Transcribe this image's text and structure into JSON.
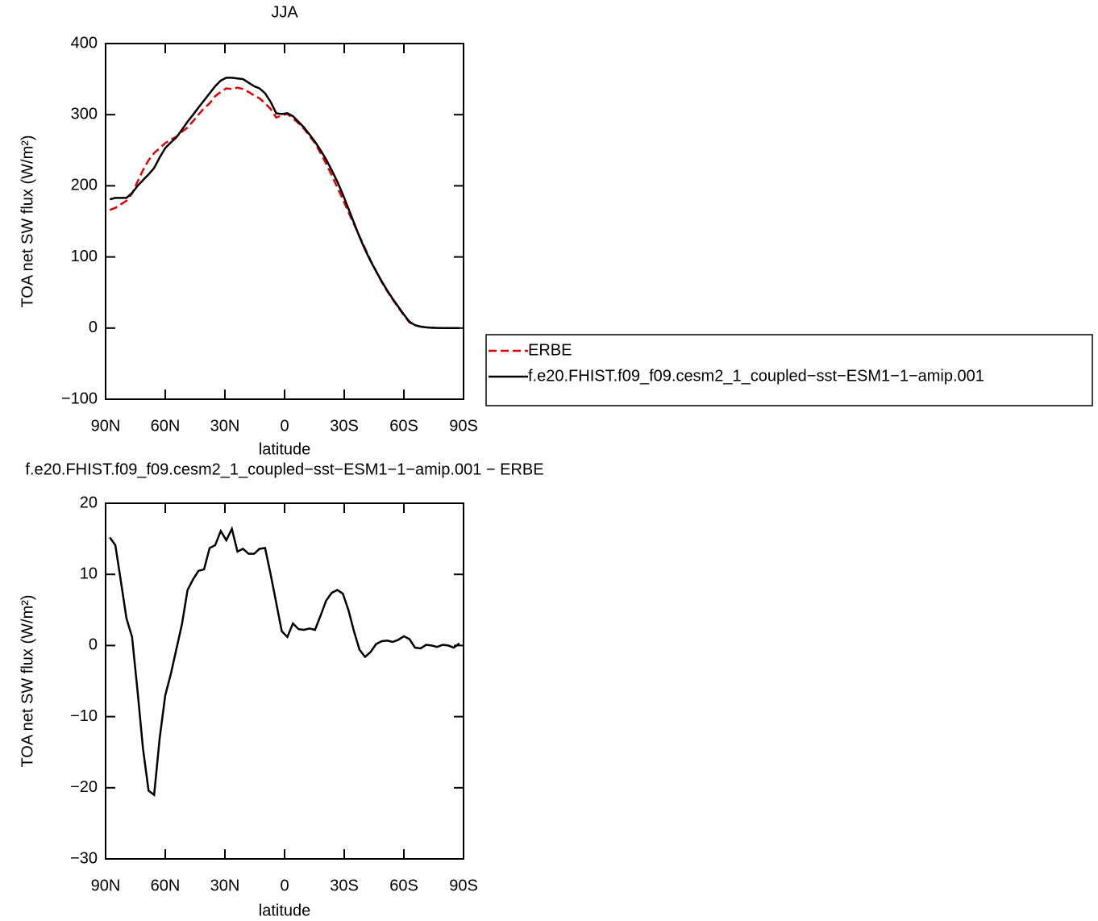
{
  "chart_data": [
    {
      "type": "line",
      "title": "JJA",
      "xlabel": "latitude",
      "ylabel": "TOA net SW flux (W/m²)",
      "xlim": [
        90,
        -90
      ],
      "ylim": [
        -100,
        400
      ],
      "xticks": [
        {
          "value": 90,
          "label": "90N"
        },
        {
          "value": 60,
          "label": "60N"
        },
        {
          "value": 30,
          "label": "30N"
        },
        0,
        {
          "value": -30,
          "label": "30S"
        },
        {
          "value": -60,
          "label": "60S"
        },
        {
          "value": -90,
          "label": "90S"
        }
      ],
      "yticks": [
        -100,
        0,
        100,
        200,
        300,
        400
      ],
      "x": [
        87.9,
        85.1,
        82.3,
        79.5,
        76.7,
        73.9,
        71.2,
        68.4,
        65.6,
        62.8,
        60.0,
        57.2,
        54.4,
        51.6,
        48.8,
        46.0,
        43.3,
        40.5,
        37.7,
        34.9,
        32.1,
        29.3,
        26.5,
        23.7,
        20.9,
        18.1,
        15.3,
        12.6,
        9.8,
        7.0,
        4.2,
        1.4,
        -1.4,
        -4.2,
        -7.0,
        -9.8,
        -12.6,
        -15.3,
        -18.1,
        -20.9,
        -23.7,
        -26.5,
        -29.3,
        -32.1,
        -34.9,
        -37.7,
        -40.5,
        -43.3,
        -46.0,
        -48.8,
        -51.6,
        -54.4,
        -57.2,
        -60.0,
        -62.8,
        -65.6,
        -68.4,
        -71.2,
        -73.9,
        -76.7,
        -79.5,
        -82.3,
        -85.1,
        -87.9
      ],
      "series": [
        {
          "name": "ERBE",
          "color": "#e00000",
          "dashed": true,
          "values": [
            166,
            169,
            174,
            179,
            189,
            206,
            222,
            236,
            246,
            253,
            260,
            265,
            269,
            276,
            282,
            291,
            300,
            309,
            316,
            326,
            332,
            337,
            336,
            338,
            336,
            332,
            327,
            323,
            316,
            308,
            296,
            299,
            301,
            295,
            288,
            280,
            270,
            260,
            246,
            231,
            215,
            198,
            181,
            163,
            146,
            129,
            112,
            95,
            80,
            65,
            52,
            40,
            29,
            18,
            8,
            4,
            2,
            1,
            0.5,
            0.4,
            0,
            0,
            0,
            0
          ]
        },
        {
          "name": "f.e20.FHIST.f09_f09.cesm2_1_coupled−sst−ESM1−1−amip.001",
          "color": "#000000",
          "dashed": false,
          "values": [
            181,
            183,
            183,
            183,
            190,
            200,
            208,
            216,
            225,
            240,
            253,
            261,
            268,
            279,
            290,
            300,
            310,
            320,
            330,
            340,
            348,
            352,
            352,
            351,
            350,
            345,
            340,
            337,
            330,
            318,
            302,
            301,
            302,
            298,
            290,
            282,
            272,
            262,
            250,
            237,
            222,
            206,
            188,
            168,
            148,
            128,
            110,
            94,
            80,
            66,
            53,
            41,
            30,
            19,
            9,
            4,
            2,
            1,
            0.5,
            0.2,
            0,
            0,
            0,
            0
          ]
        }
      ]
    },
    {
      "type": "line",
      "title": "f.e20.FHIST.f09_f09.cesm2_1_coupled−sst−ESM1−1−amip.001 − ERBE",
      "xlabel": "latitude",
      "ylabel": "TOA net SW flux (W/m²)",
      "xlim": [
        90,
        -90
      ],
      "ylim": [
        -30,
        20
      ],
      "xticks": [
        {
          "value": 90,
          "label": "90N"
        },
        {
          "value": 60,
          "label": "60N"
        },
        {
          "value": 30,
          "label": "30N"
        },
        0,
        {
          "value": -30,
          "label": "30S"
        },
        {
          "value": -60,
          "label": "60S"
        },
        {
          "value": -90,
          "label": "90S"
        }
      ],
      "yticks": [
        -30,
        -20,
        -10,
        0,
        10,
        20
      ],
      "x": [
        87.9,
        85.1,
        82.3,
        79.5,
        76.7,
        73.9,
        71.2,
        68.4,
        65.6,
        62.8,
        60.0,
        57.2,
        54.4,
        51.6,
        48.8,
        46.0,
        43.3,
        40.5,
        37.7,
        34.9,
        32.1,
        29.3,
        26.5,
        23.7,
        20.9,
        18.1,
        15.3,
        12.6,
        9.8,
        7.0,
        4.2,
        1.4,
        -1.4,
        -4.2,
        -7.0,
        -9.8,
        -12.6,
        -15.3,
        -18.1,
        -20.9,
        -23.7,
        -26.5,
        -29.3,
        -32.1,
        -34.9,
        -37.7,
        -40.5,
        -43.3,
        -46.0,
        -48.8,
        -51.6,
        -54.4,
        -57.2,
        -60.0,
        -62.8,
        -65.6,
        -68.4,
        -71.2,
        -73.9,
        -76.7,
        -79.5,
        -82.3,
        -85.1,
        -87.9
      ],
      "series": [
        {
          "color": "#000000",
          "dashed": false,
          "values": [
            15.2,
            14.1,
            9,
            3.8,
            1.2,
            -6.5,
            -14.5,
            -20.4,
            -21,
            -13,
            -7,
            -4,
            -0.5,
            3,
            7.8,
            9.3,
            10.5,
            10.7,
            13.7,
            14.1,
            16.1,
            14.8,
            16.4,
            13.2,
            13.6,
            12.9,
            12.9,
            13.6,
            13.7,
            10,
            6,
            2,
            1.2,
            3.1,
            2.3,
            2.2,
            2.4,
            2.2,
            4.2,
            6.3,
            7.4,
            7.8,
            7.3,
            5,
            2,
            -0.6,
            -1.6,
            -0.9,
            0.2,
            0.6,
            0.7,
            0.5,
            0.8,
            1.3,
            0.9,
            -0.3,
            -0.4,
            0.1,
            0,
            -0.2,
            0.1,
            0,
            -0.3,
            0.3
          ]
        }
      ]
    }
  ]
}
